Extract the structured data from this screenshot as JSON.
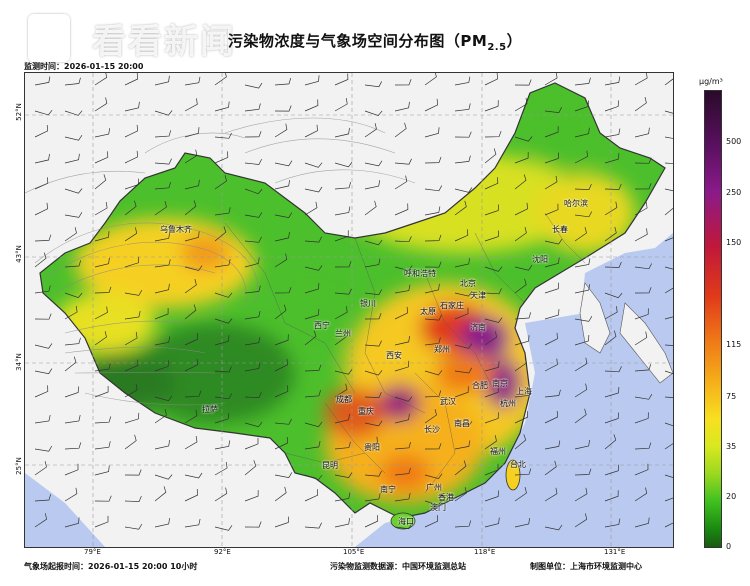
{
  "title": {
    "main": "污染物浓度与气象场空间分布图（PM",
    "subscript": "2.5",
    "close": "）"
  },
  "watermark": "看看新闻",
  "timestamp": "监测时间：2026-01-15 20:00",
  "latitudes": [
    "52°N",
    "43°N",
    "34°N",
    "25°N"
  ],
  "longitudes": [
    "79°E",
    "92°E",
    "105°E",
    "118°E",
    "131°E"
  ],
  "cities": [
    "乌鲁木齐",
    "拉萨",
    "西宁",
    "兰州",
    "银川",
    "呼和浩特",
    "北京",
    "天津",
    "石家庄",
    "太原",
    "济南",
    "哈尔滨",
    "长春",
    "沈阳",
    "郑州",
    "西安",
    "成都",
    "重庆",
    "武汉",
    "合肥",
    "南京",
    "上海",
    "杭州",
    "南昌",
    "长沙",
    "贵阳",
    "昆明",
    "福州",
    "台北",
    "广州",
    "南宁",
    "香港",
    "澳门",
    "海口"
  ],
  "legend": {
    "unit": "μg/m³",
    "ticks": [
      "500",
      "250",
      "150",
      "115",
      "75",
      "35",
      "20",
      "0"
    ]
  },
  "footer": {
    "left": "气象场起报时间：2026-01-15 20:00 10小时",
    "center": "污染物监测数据源：中国环境监测总站",
    "right": "制图单位：上海市环境监测中心"
  },
  "colors": {
    "sea": "#b9c9f0",
    "land_outside": "#f2f2f2",
    "clean": "#3cb43c",
    "moderate": "#f5d020",
    "heavy": "#e0401a",
    "severe": "#8a1a8a"
  }
}
